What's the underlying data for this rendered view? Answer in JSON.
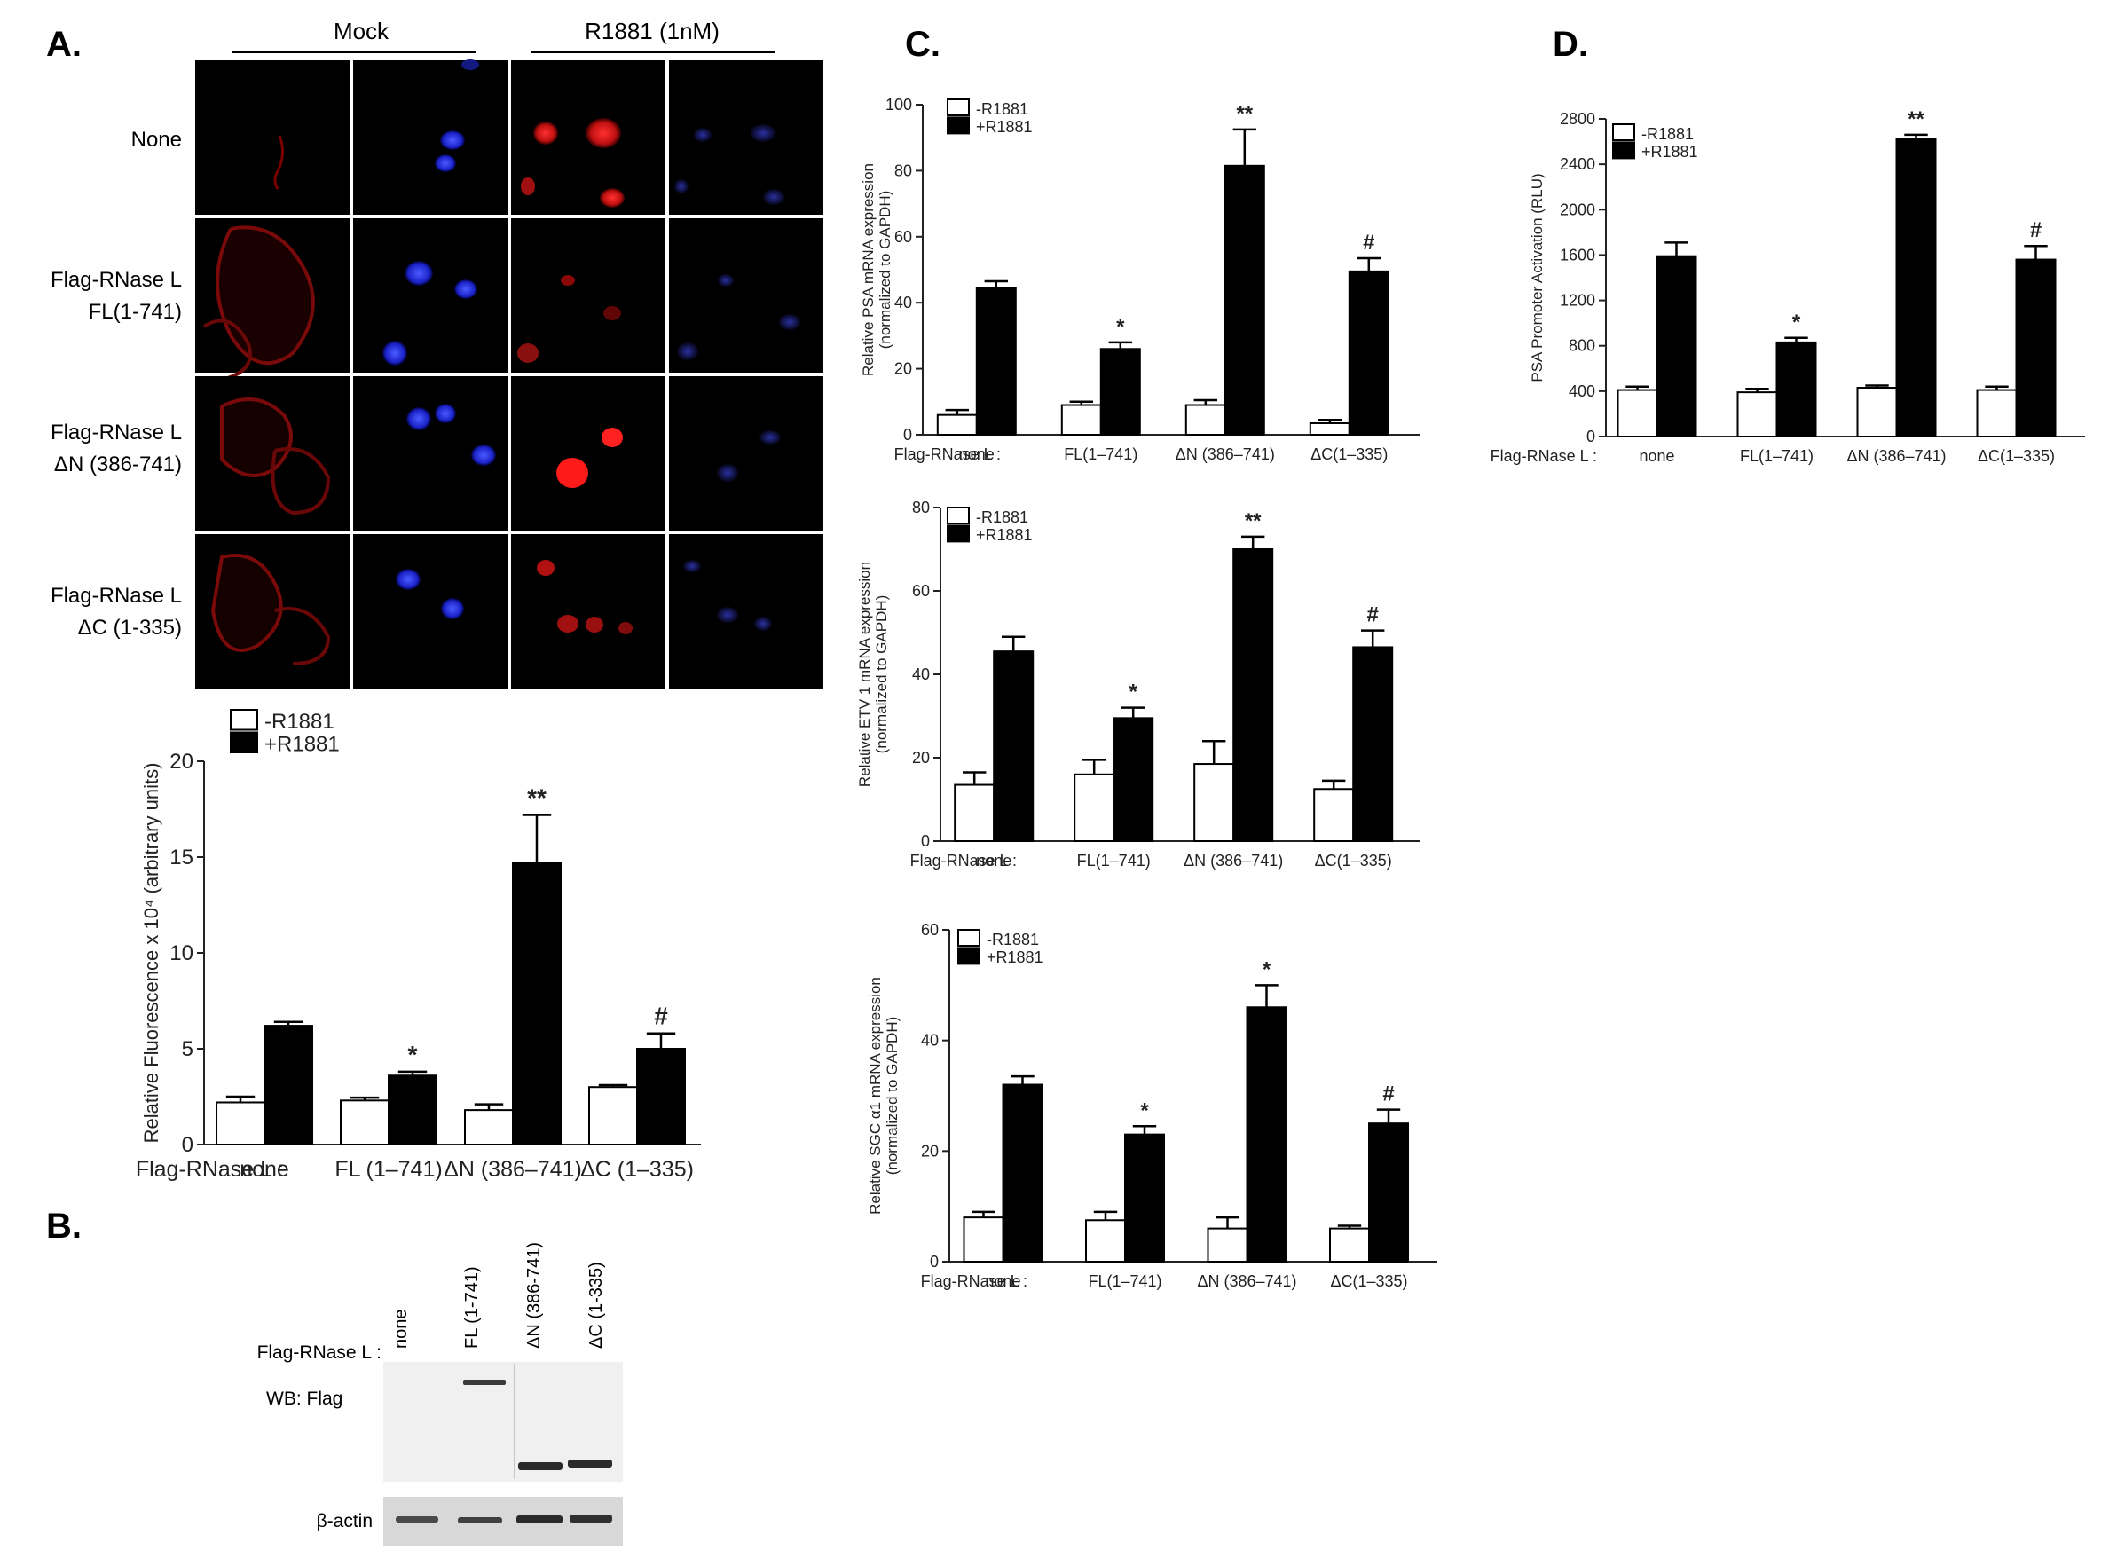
{
  "panels": {
    "A": "A.",
    "B": "B.",
    "C": "C.",
    "D": "D."
  },
  "microscopy": {
    "col_groups": [
      "Mock",
      "R1881 (1nM)"
    ],
    "rows": [
      {
        "line1": "None",
        "line2": ""
      },
      {
        "line1": "Flag-RNase L",
        "line2": "FL(1-741)"
      },
      {
        "line1": "Flag-RNase L",
        "line2": "ΔN (386-741)"
      },
      {
        "line1": "Flag-RNase L",
        "line2": "ΔC (1-335)"
      }
    ]
  },
  "legend": {
    "minus": "-R1881",
    "plus": "+R1881"
  },
  "flag_label_A": "Flag-RNase L :",
  "flag_label_C": "Flag-RNase L :",
  "blot": {
    "flag_label": "Flag-RNase L :",
    "lanes": [
      "none",
      "FL (1-741)",
      "ΔN (386-741)",
      "ΔC (1-335)"
    ],
    "wb_label": "WB: Flag",
    "actin_label": "β-actin"
  },
  "chart_data": [
    {
      "id": "A_fluorescence",
      "type": "bar",
      "ylabel": "Relative Fluorescence x 10⁴ (arbitrary units)",
      "categories": [
        "none",
        "FL (1–741)",
        "ΔN (386–741)",
        "ΔC (1–335)"
      ],
      "ylim": [
        0,
        20
      ],
      "yticks": [
        0,
        5,
        10,
        15,
        20
      ],
      "series": [
        {
          "name": "-R1881",
          "values": [
            2.2,
            2.3,
            1.8,
            3.0
          ],
          "errors": [
            0.3,
            0.15,
            0.3,
            0.1
          ]
        },
        {
          "name": "+R1881",
          "values": [
            6.2,
            3.6,
            14.7,
            5.0
          ],
          "errors": [
            0.2,
            0.2,
            2.5,
            0.8
          ]
        }
      ],
      "annotations": [
        "",
        "*",
        "**",
        "#"
      ]
    },
    {
      "id": "C_PSA",
      "type": "bar",
      "ylabel": "Relative PSA mRNA expression (normalized to GAPDH)",
      "categories": [
        "none",
        "FL(1–741)",
        "ΔN (386–741)",
        "ΔC(1–335)"
      ],
      "ylim": [
        0,
        100
      ],
      "yticks": [
        0,
        20,
        40,
        60,
        80,
        100
      ],
      "series": [
        {
          "name": "-R1881",
          "values": [
            6,
            9,
            9,
            3.5
          ],
          "errors": [
            1.5,
            1,
            1.5,
            1
          ]
        },
        {
          "name": "+R1881",
          "values": [
            44.5,
            26,
            81.5,
            49.5
          ],
          "errors": [
            2,
            2,
            11,
            4
          ]
        }
      ],
      "annotations": [
        "",
        "*",
        "**",
        "#"
      ]
    },
    {
      "id": "C_ETV1",
      "type": "bar",
      "ylabel": "Relative ETV 1 mRNA expression (normalized to GAPDH)",
      "categories": [
        "none",
        "FL(1–741)",
        "ΔN (386–741)",
        "ΔC(1–335)"
      ],
      "ylim": [
        0,
        80
      ],
      "yticks": [
        0,
        20,
        40,
        60,
        80
      ],
      "series": [
        {
          "name": "-R1881",
          "values": [
            13.5,
            16,
            18.5,
            12.5
          ],
          "errors": [
            3,
            3.5,
            5.5,
            2
          ]
        },
        {
          "name": "+R1881",
          "values": [
            45.5,
            29.5,
            70,
            46.5
          ],
          "errors": [
            3.5,
            2.5,
            3,
            4
          ]
        }
      ],
      "annotations": [
        "",
        "*",
        "**",
        "#"
      ]
    },
    {
      "id": "C_SGC",
      "type": "bar",
      "ylabel": "Relative SGC α1 mRNA expression (normalized to GAPDH)",
      "categories": [
        "none",
        "FL(1–741)",
        "ΔN (386–741)",
        "ΔC(1–335)"
      ],
      "ylim": [
        0,
        60
      ],
      "yticks": [
        0,
        20,
        40,
        60
      ],
      "series": [
        {
          "name": "-R1881",
          "values": [
            8,
            7.5,
            6,
            6
          ],
          "errors": [
            1,
            1.5,
            2,
            0.5
          ]
        },
        {
          "name": "+R1881",
          "values": [
            32,
            23,
            46,
            25
          ],
          "errors": [
            1.5,
            1.5,
            4,
            2.5
          ]
        }
      ],
      "annotations": [
        "",
        "*",
        "*",
        "#"
      ]
    },
    {
      "id": "D_PSA_promoter",
      "type": "bar",
      "ylabel": "PSA Promoter Activation (RLU)",
      "categories": [
        "none",
        "FL(1–741)",
        "ΔN (386–741)",
        "ΔC(1–335)"
      ],
      "ylim": [
        0,
        2800
      ],
      "yticks": [
        0,
        400,
        800,
        1200,
        1600,
        2000,
        2400,
        2800
      ],
      "series": [
        {
          "name": "-R1881",
          "values": [
            410,
            390,
            430,
            410
          ],
          "errors": [
            30,
            30,
            20,
            30
          ]
        },
        {
          "name": "+R1881",
          "values": [
            1590,
            830,
            2620,
            1560
          ],
          "errors": [
            120,
            40,
            40,
            120
          ]
        }
      ],
      "annotations": [
        "",
        "*",
        "**",
        "#"
      ]
    }
  ]
}
